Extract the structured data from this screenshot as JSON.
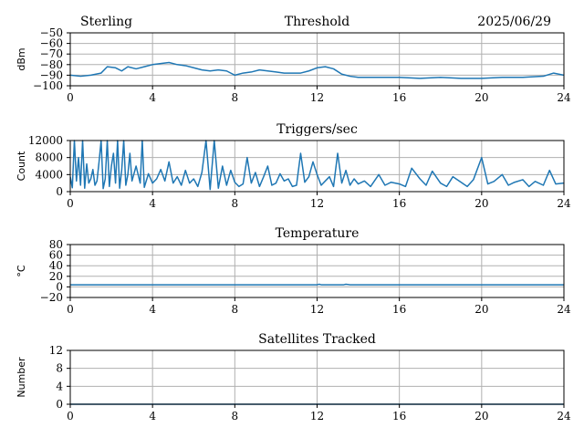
{
  "header": {
    "left": "Sterling",
    "center": "Threshold",
    "right": "2025/06/29"
  },
  "chart_data": [
    {
      "type": "line",
      "title": "Threshold",
      "ylabel": "dBm",
      "xlim": [
        0,
        24
      ],
      "ylim": [
        -100,
        -50
      ],
      "x_ticks": [
        0,
        4,
        8,
        12,
        16,
        20,
        24
      ],
      "y_ticks": [
        -100,
        -90,
        -80,
        -70,
        -60,
        -50
      ],
      "grid": true,
      "x": [
        0,
        0.5,
        1,
        1.5,
        1.8,
        2.2,
        2.5,
        2.8,
        3.2,
        3.6,
        4,
        4.4,
        4.8,
        5.2,
        5.6,
        6,
        6.4,
        6.8,
        7.2,
        7.6,
        8,
        8.4,
        8.8,
        9.2,
        9.6,
        10,
        10.4,
        10.8,
        11.2,
        11.6,
        12,
        12.4,
        12.8,
        13.2,
        13.6,
        14,
        15,
        16,
        17,
        18,
        19,
        20,
        21,
        22,
        23,
        23.5,
        24
      ],
      "values": [
        -90,
        -91,
        -90,
        -88,
        -82,
        -83,
        -86,
        -82,
        -84,
        -82,
        -80,
        -79,
        -78,
        -80,
        -81,
        -83,
        -85,
        -86,
        -85,
        -86,
        -90,
        -88,
        -87,
        -85,
        -86,
        -87,
        -88,
        -88,
        -88,
        -86,
        -83,
        -82,
        -84,
        -89,
        -91,
        -92,
        -92,
        -92,
        -93,
        -92,
        -93,
        -93,
        -92,
        -92,
        -91,
        -88,
        -90
      ]
    },
    {
      "type": "line",
      "title": "Triggers/sec",
      "ylabel": "Count",
      "xlim": [
        0,
        24
      ],
      "ylim": [
        0,
        12000
      ],
      "x_ticks": [
        0,
        4,
        8,
        12,
        16,
        20,
        24
      ],
      "y_ticks": [
        0,
        4000,
        8000,
        12000
      ],
      "grid": true,
      "x": [
        0,
        0.1,
        0.2,
        0.3,
        0.4,
        0.5,
        0.6,
        0.7,
        0.8,
        0.9,
        1.0,
        1.1,
        1.2,
        1.3,
        1.4,
        1.5,
        1.6,
        1.7,
        1.8,
        1.9,
        2.0,
        2.1,
        2.2,
        2.3,
        2.4,
        2.5,
        2.6,
        2.7,
        2.8,
        2.9,
        3.0,
        3.2,
        3.4,
        3.5,
        3.6,
        3.8,
        4.0,
        4.2,
        4.4,
        4.6,
        4.8,
        5.0,
        5.2,
        5.4,
        5.6,
        5.8,
        6.0,
        6.2,
        6.4,
        6.6,
        6.8,
        7.0,
        7.2,
        7.4,
        7.6,
        7.8,
        8.0,
        8.2,
        8.4,
        8.6,
        8.8,
        9.0,
        9.2,
        9.4,
        9.6,
        9.8,
        10.0,
        10.2,
        10.4,
        10.6,
        10.8,
        11.0,
        11.2,
        11.4,
        11.6,
        11.8,
        12.0,
        12.2,
        12.4,
        12.6,
        12.8,
        13.0,
        13.2,
        13.4,
        13.6,
        13.8,
        14.0,
        14.3,
        14.6,
        15.0,
        15.3,
        15.6,
        16.0,
        16.3,
        16.6,
        17.0,
        17.3,
        17.6,
        18.0,
        18.3,
        18.6,
        19.0,
        19.3,
        19.6,
        20.0,
        20.3,
        20.6,
        21.0,
        21.3,
        21.6,
        22.0,
        22.3,
        22.6,
        23.0,
        23.3,
        23.6,
        24.0
      ],
      "values": [
        3500,
        900,
        12000,
        2500,
        8000,
        1500,
        12000,
        800,
        6500,
        2000,
        3000,
        5200,
        1500,
        2500,
        7000,
        12000,
        700,
        3000,
        12000,
        1200,
        6000,
        9000,
        2000,
        12000,
        800,
        5000,
        12000,
        1500,
        4000,
        9000,
        2500,
        6000,
        2000,
        12000,
        1000,
        4200,
        2000,
        3000,
        5200,
        2500,
        7000,
        2000,
        3500,
        1500,
        5000,
        2000,
        3000,
        1200,
        4500,
        12000,
        500,
        12000,
        800,
        6000,
        1500,
        5000,
        2200,
        1200,
        1800,
        8000,
        2000,
        4500,
        1200,
        3500,
        6000,
        1500,
        2000,
        4200,
        2500,
        3000,
        1200,
        1500,
        9000,
        2200,
        3500,
        7000,
        4000,
        1500,
        2500,
        3500,
        1200,
        9000,
        2000,
        5000,
        1500,
        3000,
        1800,
        2500,
        1200,
        4000,
        1500,
        2200,
        1800,
        1200,
        5500,
        3000,
        1500,
        4800,
        2000,
        1200,
        3500,
        2200,
        1200,
        2800,
        8000,
        1800,
        2400,
        4000,
        1500,
        2200,
        2800,
        1200,
        2400,
        1500,
        5000,
        1800,
        2000
      ]
    },
    {
      "type": "line",
      "title": "Temperature",
      "ylabel": "°C",
      "xlim": [
        0,
        24
      ],
      "ylim": [
        -20,
        80
      ],
      "x_ticks": [
        0,
        4,
        8,
        12,
        16,
        20,
        24
      ],
      "y_ticks": [
        -20,
        0,
        20,
        40,
        60,
        80
      ],
      "grid": true,
      "x": [
        0,
        12,
        12.1,
        12.2,
        13.3,
        13.4,
        13.6,
        24
      ],
      "values": [
        4,
        4,
        5,
        4,
        4,
        5,
        4,
        4
      ]
    },
    {
      "type": "line",
      "title": "Satellites Tracked",
      "ylabel": "Number",
      "xlim": [
        0,
        24
      ],
      "ylim": [
        0,
        12
      ],
      "x_ticks": [
        0,
        4,
        8,
        12,
        16,
        20,
        24
      ],
      "y_ticks": [
        0,
        4,
        8,
        12
      ],
      "grid": true,
      "x": [
        0,
        24
      ],
      "values": [
        0,
        0
      ]
    }
  ]
}
